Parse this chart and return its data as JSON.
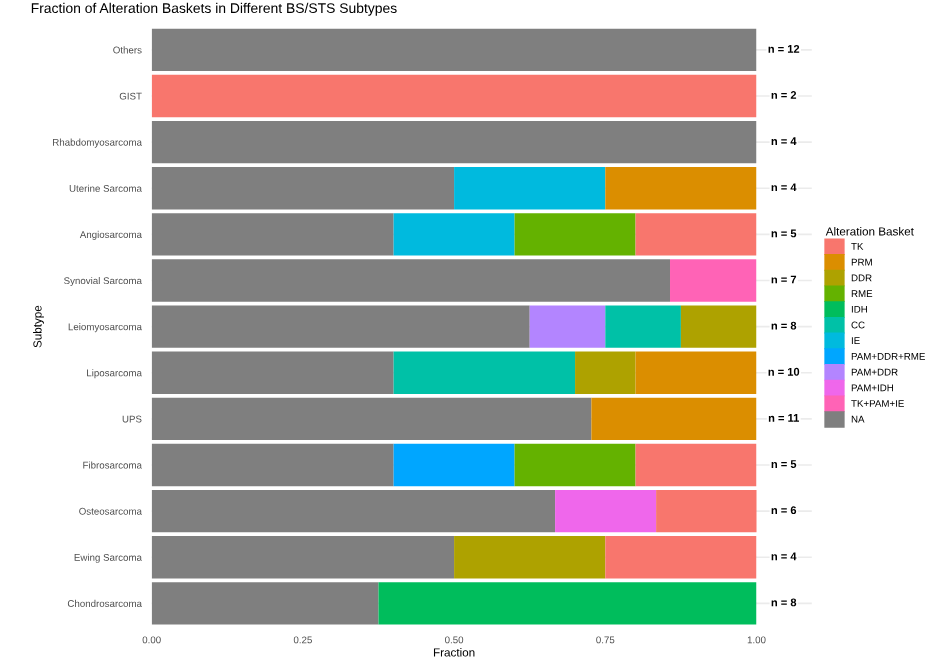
{
  "chart_data": {
    "type": "bar",
    "orientation": "horizontal",
    "stacked": true,
    "title": "Fraction of Alteration Baskets in Different BS/STS Subtypes",
    "xlabel": "Fraction",
    "ylabel": "Subtype",
    "legend_title": "Alteration Basket",
    "legend": "right",
    "grid": "y",
    "categories": [
      "Others",
      "GIST",
      "Rhabdomyosarcoma",
      "Uterine Sarcoma",
      "Angiosarcoma",
      "Synovial Sarcoma",
      "Leiomyosarcoma",
      "Liposarcoma",
      "UPS",
      "Fibrosarcoma",
      "Osteosarcoma",
      "Ewing Sarcoma",
      "Chondrosarcoma"
    ],
    "xlim": [
      0,
      1
    ],
    "xticks": [
      {
        "value": 0,
        "label": "0.00"
      },
      {
        "value": 0.25,
        "label": "0.25"
      },
      {
        "value": 0.5,
        "label": "0.50"
      },
      {
        "value": 0.75,
        "label": "0.75"
      },
      {
        "value": 1,
        "label": "1.00"
      }
    ],
    "series": [
      {
        "name": "NA",
        "color": "#7f7f7f",
        "values": [
          1,
          null,
          1,
          0.5,
          0.4,
          0.857,
          0.625,
          0.4,
          0.727,
          0.4,
          0.667,
          0.5,
          0.375
        ]
      },
      {
        "name": "TK+PAM+IE",
        "color": "#ff63b6",
        "values": [
          null,
          null,
          null,
          null,
          null,
          0.143,
          null,
          null,
          null,
          null,
          null,
          null,
          null
        ]
      },
      {
        "name": "PAM+IDH",
        "color": "#ef67eb",
        "values": [
          null,
          null,
          null,
          null,
          null,
          null,
          null,
          null,
          null,
          null,
          0.167,
          null,
          null
        ]
      },
      {
        "name": "PAM+DDR",
        "color": "#b385ff",
        "values": [
          null,
          null,
          null,
          null,
          null,
          null,
          0.125,
          null,
          null,
          null,
          null,
          null,
          null
        ]
      },
      {
        "name": "PAM+DDR+RME",
        "color": "#00a6ff",
        "values": [
          null,
          null,
          null,
          null,
          null,
          null,
          null,
          null,
          null,
          0.2,
          null,
          null,
          null
        ]
      },
      {
        "name": "IE",
        "color": "#00bade",
        "values": [
          null,
          null,
          null,
          0.25,
          0.2,
          null,
          null,
          null,
          null,
          null,
          null,
          null,
          null
        ]
      },
      {
        "name": "CC",
        "color": "#00c1a7",
        "values": [
          null,
          null,
          null,
          null,
          null,
          null,
          0.125,
          0.3,
          null,
          null,
          null,
          null,
          null
        ]
      },
      {
        "name": "IDH",
        "color": "#00bd5c",
        "values": [
          null,
          null,
          null,
          null,
          null,
          null,
          null,
          null,
          null,
          null,
          null,
          null,
          0.625
        ]
      },
      {
        "name": "RME",
        "color": "#64b200",
        "values": [
          null,
          null,
          null,
          null,
          0.2,
          null,
          null,
          null,
          null,
          0.2,
          null,
          null,
          null
        ]
      },
      {
        "name": "DDR",
        "color": "#aea200",
        "values": [
          null,
          null,
          null,
          null,
          null,
          null,
          0.125,
          0.1,
          null,
          null,
          null,
          0.25,
          null
        ]
      },
      {
        "name": "PRM",
        "color": "#db8e00",
        "values": [
          null,
          null,
          null,
          0.25,
          null,
          null,
          null,
          0.2,
          0.273,
          null,
          null,
          null,
          null
        ]
      },
      {
        "name": "TK",
        "color": "#f8766d",
        "values": [
          null,
          1,
          null,
          null,
          0.2,
          null,
          null,
          null,
          null,
          0.2,
          0.167,
          0.25,
          null
        ]
      }
    ],
    "annotations": [
      "n = 12",
      "n = 2",
      "n = 4",
      "n = 4",
      "n = 5",
      "n = 7",
      "n = 8",
      "n = 10",
      "n = 11",
      "n = 5",
      "n = 6",
      "n = 4",
      "n = 8"
    ]
  }
}
